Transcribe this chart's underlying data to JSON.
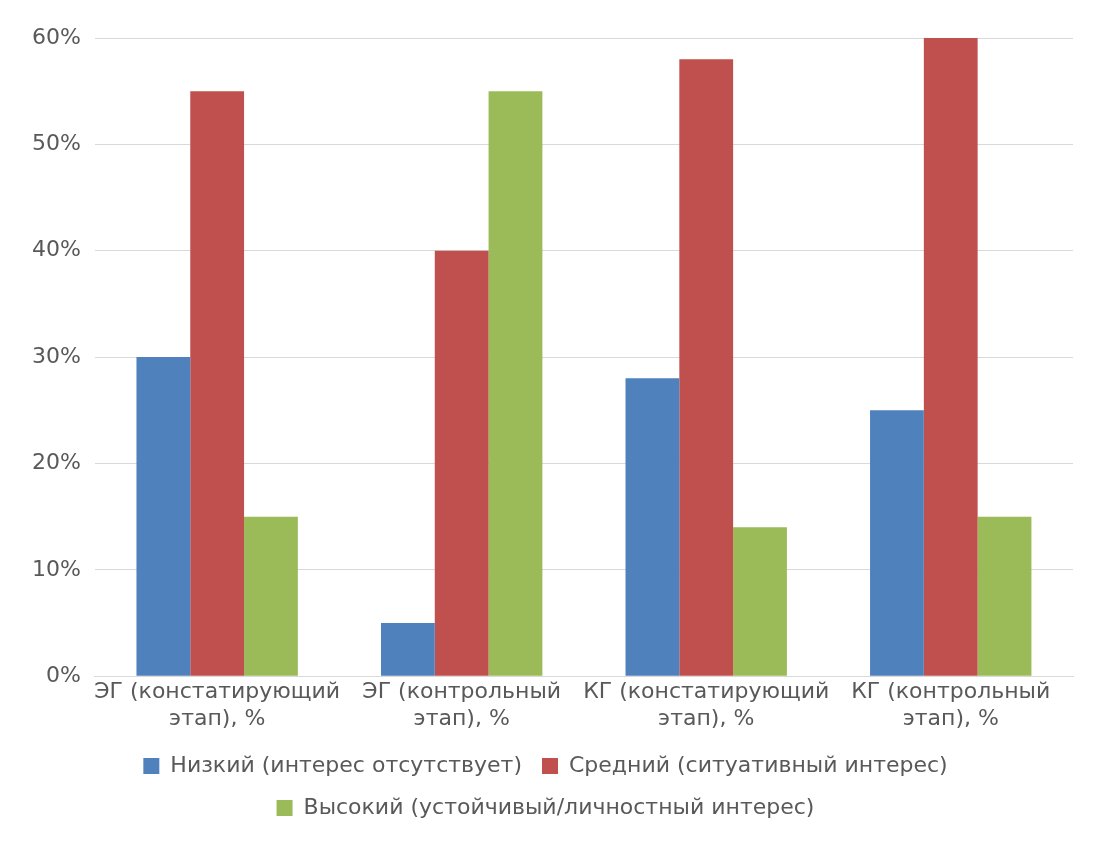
{
  "chart_data": {
    "type": "bar",
    "categories": [
      "ЭГ (констатирующий этап), %",
      "ЭГ (контрольный этап), %",
      "КГ (констатирующий этап), %",
      "КГ (контрольный этап), %"
    ],
    "series": [
      {
        "name": "Низкий (интерес отсутствует)",
        "color": "#4f81bd",
        "values": [
          30,
          5,
          28,
          25
        ]
      },
      {
        "name": "Средний (ситуативный интерес)",
        "color": "#c0504d",
        "values": [
          55,
          40,
          58,
          60
        ]
      },
      {
        "name": "Высокий (устойчивый/личностный интерес)",
        "color": "#9bbb59",
        "values": [
          15,
          55,
          14,
          15
        ]
      }
    ],
    "ylim": [
      0,
      60
    ],
    "yticks": [
      {
        "value": 0,
        "label": "0%"
      },
      {
        "value": 10,
        "label": "10%"
      },
      {
        "value": 20,
        "label": "20%"
      },
      {
        "value": 30,
        "label": "30%"
      },
      {
        "value": 40,
        "label": "40%"
      },
      {
        "value": 50,
        "label": "50%"
      },
      {
        "value": 60,
        "label": "60%"
      }
    ],
    "grid": "y",
    "legend": "bottom"
  }
}
